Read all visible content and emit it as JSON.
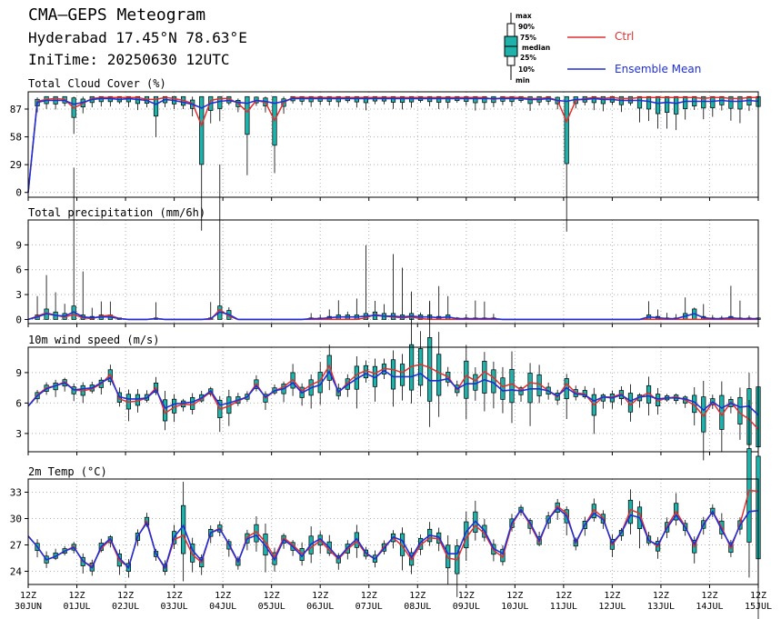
{
  "header": {
    "title": "CMA—GEPS Meteogram",
    "location": "Hyderabad 17.45°N 78.63°E",
    "initime": "IniTime: 20250630 12UTC"
  },
  "legend": {
    "boxplot_labels": [
      "max",
      "90%",
      "75%",
      "median",
      "25%",
      "10%",
      "min"
    ],
    "ctrl_label": "Ctrl",
    "mean_label": "Ensemble Mean",
    "ctrl_color": "#e03030",
    "mean_color": "#1f2fd6",
    "box_color": "#20b2aa"
  },
  "x_axis": {
    "tick_hour": "12Z",
    "tick_dates": [
      "30JUN",
      "01JUL",
      "02JUL",
      "03JUL",
      "04JUL",
      "05JUL",
      "06JUL",
      "07JUL",
      "08JUL",
      "09JUL",
      "10JUL",
      "11JUL",
      "12JUL",
      "13JUL",
      "14JUL",
      "15JUL"
    ],
    "step_hours": 6
  },
  "chart_data": [
    {
      "type": "boxplot-line",
      "title": "Total Cloud Cover (%)",
      "yticks": [
        0,
        29,
        58,
        87
      ],
      "ylim": [
        -5,
        105
      ],
      "ctrl": [
        0,
        95,
        97,
        98,
        97,
        88,
        93,
        98,
        99,
        99,
        99,
        99,
        99,
        97,
        97,
        99,
        98,
        96,
        93,
        70,
        96,
        98,
        98,
        93,
        84,
        96,
        94,
        75,
        94,
        99,
        99,
        99,
        99,
        99,
        99,
        99,
        99,
        99,
        99,
        99,
        99,
        99,
        99,
        99,
        99,
        99,
        99,
        99,
        99,
        99,
        99,
        97,
        99,
        99,
        99,
        98,
        98,
        99,
        96,
        74,
        96,
        98,
        99,
        98,
        99,
        98,
        98,
        99,
        99,
        99,
        99,
        99,
        99,
        99,
        98,
        99,
        99,
        98,
        98,
        99,
        99
      ],
      "mean": [
        0,
        94,
        96,
        96,
        96,
        92,
        94,
        97,
        98,
        98,
        97,
        98,
        97,
        96,
        92,
        97,
        96,
        94,
        92,
        88,
        93,
        95,
        96,
        94,
        93,
        96,
        95,
        93,
        95,
        98,
        98,
        98,
        98,
        98,
        98,
        98,
        98,
        98,
        98,
        98,
        98,
        98,
        98,
        98,
        98,
        98,
        98,
        98,
        98,
        98,
        98,
        98,
        98,
        98,
        98,
        97,
        97,
        98,
        96,
        95,
        97,
        97,
        98,
        97,
        97,
        96,
        96,
        96,
        95,
        93,
        94,
        93,
        95,
        95,
        95,
        95,
        96,
        95,
        95,
        96,
        95
      ]
    },
    {
      "type": "boxplot-line",
      "title": "Total precipitation (mm/6h)",
      "yticks": [
        0,
        3,
        6,
        9
      ],
      "ylim": [
        -0.5,
        12
      ],
      "ctrl": [
        0,
        0.4,
        0.8,
        0.5,
        0.3,
        0.6,
        0.2,
        0.1,
        0.4,
        0.5,
        0.1,
        0.0,
        0.0,
        0.0,
        0.1,
        0.0,
        0.0,
        0.0,
        0.0,
        0.0,
        0.0,
        1.2,
        0.4,
        0.0,
        0.0,
        0.0,
        0.0,
        0.0,
        0.0,
        0.0,
        0.0,
        0.0,
        0.0,
        0.0,
        0.0,
        0.0,
        0.0,
        0.2,
        0.6,
        0.4,
        0.3,
        0.2,
        0.3,
        0.1,
        0.0,
        0.0,
        0.0,
        0.0,
        0.0,
        0.0,
        0.0,
        0.0,
        0.0,
        0.0,
        0.0,
        0.0,
        0.0,
        0.0,
        0.0,
        0.0,
        0.0,
        0.0,
        0.0,
        0.0,
        0.0,
        0.0,
        0.0,
        0.0,
        0.0,
        0.0,
        0.0,
        0.0,
        0.0,
        0.0,
        0.0,
        0.0,
        0.0,
        0.0,
        0.0,
        0.0,
        0.0
      ],
      "mean": [
        0,
        0.3,
        0.7,
        0.5,
        0.4,
        0.9,
        0.3,
        0.2,
        0.3,
        0.3,
        0.1,
        0.0,
        0.0,
        0.0,
        0.1,
        0.0,
        0.0,
        0.0,
        0.0,
        0.0,
        0.1,
        0.9,
        0.6,
        0.0,
        0.0,
        0.0,
        0.0,
        0.0,
        0.0,
        0.0,
        0.0,
        0.1,
        0.1,
        0.2,
        0.3,
        0.3,
        0.3,
        0.4,
        0.5,
        0.4,
        0.4,
        0.3,
        0.4,
        0.3,
        0.3,
        0.2,
        0.3,
        0.1,
        0.1,
        0.1,
        0.1,
        0.1,
        0.0,
        0.0,
        0.0,
        0.0,
        0.0,
        0.0,
        0.0,
        0.0,
        0.0,
        0.0,
        0.0,
        0.0,
        0.0,
        0.0,
        0.0,
        0.0,
        0.3,
        0.2,
        0.1,
        0.1,
        0.4,
        0.7,
        0.2,
        0.1,
        0.1,
        0.2,
        0.1,
        0.1,
        0.1
      ]
    },
    {
      "type": "boxplot-line",
      "title": "10m wind speed (m/s)",
      "yticks": [
        3,
        6,
        9
      ],
      "ylim": [
        1.2,
        11.5
      ],
      "ctrl": [
        5.7,
        6.8,
        7.5,
        7.7,
        8.1,
        7.3,
        7.2,
        7.4,
        7.9,
        8.8,
        6.4,
        6.1,
        6.2,
        6.5,
        7.5,
        5.0,
        5.6,
        5.9,
        5.8,
        6.4,
        7.1,
        5.4,
        5.7,
        6.2,
        6.6,
        7.9,
        6.5,
        7.2,
        7.6,
        8.3,
        7.2,
        7.8,
        8.2,
        9.7,
        7.0,
        8.0,
        8.8,
        9.2,
        8.9,
        9.4,
        9.3,
        9.0,
        9.6,
        9.8,
        9.5,
        9.0,
        8.6,
        7.3,
        8.7,
        8.2,
        9.1,
        8.5,
        7.6,
        7.9,
        7.3,
        8.0,
        7.9,
        7.2,
        6.6,
        7.9,
        7.0,
        6.9,
        5.8,
        6.6,
        6.6,
        6.9,
        5.8,
        6.6,
        7.0,
        6.2,
        6.5,
        6.6,
        6.3,
        5.8,
        4.7,
        6.1,
        4.8,
        6.1,
        5.0,
        4.4,
        3.4
      ],
      "mean": [
        5.7,
        6.7,
        7.4,
        7.7,
        8.0,
        7.3,
        7.4,
        7.5,
        8.0,
        8.5,
        6.6,
        6.4,
        6.4,
        6.5,
        7.3,
        5.5,
        5.9,
        6.0,
        6.1,
        6.5,
        7.2,
        5.8,
        6.0,
        6.3,
        6.6,
        7.7,
        6.6,
        7.2,
        7.4,
        8.0,
        7.0,
        7.5,
        7.8,
        9.1,
        7.1,
        7.8,
        8.4,
        8.9,
        8.5,
        9.2,
        8.6,
        8.6,
        8.6,
        8.9,
        8.2,
        8.2,
        8.4,
        7.4,
        7.9,
        7.9,
        8.3,
        8.0,
        7.2,
        7.3,
        7.2,
        7.4,
        7.4,
        7.2,
        6.7,
        7.5,
        6.9,
        6.8,
        6.2,
        6.6,
        6.5,
        6.8,
        6.2,
        6.6,
        6.7,
        6.4,
        6.5,
        6.5,
        6.4,
        6.1,
        5.3,
        6.1,
        5.5,
        6.0,
        5.6,
        5.7,
        4.8
      ]
    },
    {
      "type": "boxplot-line",
      "title": "2m Temp (°C)",
      "yticks": [
        24,
        27,
        30,
        33
      ],
      "ylim": [
        22.5,
        34.5
      ],
      "ctrl": [
        28.0,
        26.8,
        25.3,
        25.7,
        26.3,
        26.8,
        25.1,
        24.6,
        26.6,
        27.6,
        25.2,
        24.5,
        27.9,
        29.7,
        26.0,
        24.3,
        27.6,
        28.1,
        25.9,
        25.0,
        28.4,
        28.9,
        27.0,
        25.0,
        27.9,
        28.5,
        27.3,
        25.6,
        27.8,
        27.0,
        26.0,
        26.7,
        27.5,
        26.4,
        25.4,
        26.5,
        27.4,
        26.0,
        25.4,
        26.8,
        27.8,
        26.9,
        25.3,
        27.0,
        27.8,
        27.7,
        25.5,
        25.3,
        27.8,
        29.2,
        28.3,
        26.4,
        25.6,
        29.3,
        31.0,
        29.3,
        27.3,
        29.9,
        31.4,
        30.6,
        27.2,
        29.3,
        31.0,
        30.1,
        27.0,
        28.4,
        31.0,
        30.6,
        27.6,
        26.8,
        29.1,
        30.8,
        29.1,
        26.8,
        29.4,
        30.8,
        29.0,
        26.6,
        29.4,
        33.2,
        33.1
      ],
      "mean": [
        28.0,
        26.8,
        25.3,
        25.7,
        26.3,
        26.7,
        25.2,
        24.4,
        26.8,
        27.7,
        25.5,
        24.4,
        28.0,
        29.5,
        26.0,
        24.4,
        27.9,
        29.2,
        26.4,
        25.2,
        28.4,
        28.8,
        27.1,
        25.1,
        27.7,
        28.1,
        26.9,
        25.3,
        27.6,
        26.8,
        25.7,
        27.1,
        27.7,
        26.7,
        25.5,
        26.7,
        27.7,
        26.1,
        25.4,
        26.6,
        27.9,
        27.5,
        25.6,
        27.3,
        28.1,
        27.9,
        26.0,
        26.0,
        28.5,
        29.7,
        28.6,
        26.6,
        26.0,
        29.5,
        31.0,
        29.5,
        27.5,
        29.9,
        31.2,
        30.3,
        27.3,
        29.3,
        30.6,
        29.9,
        27.2,
        28.4,
        30.4,
        30.1,
        27.5,
        27.0,
        28.9,
        30.4,
        29.0,
        27.1,
        29.3,
        30.8,
        28.7,
        26.9,
        29.2,
        30.8,
        30.9
      ]
    }
  ]
}
